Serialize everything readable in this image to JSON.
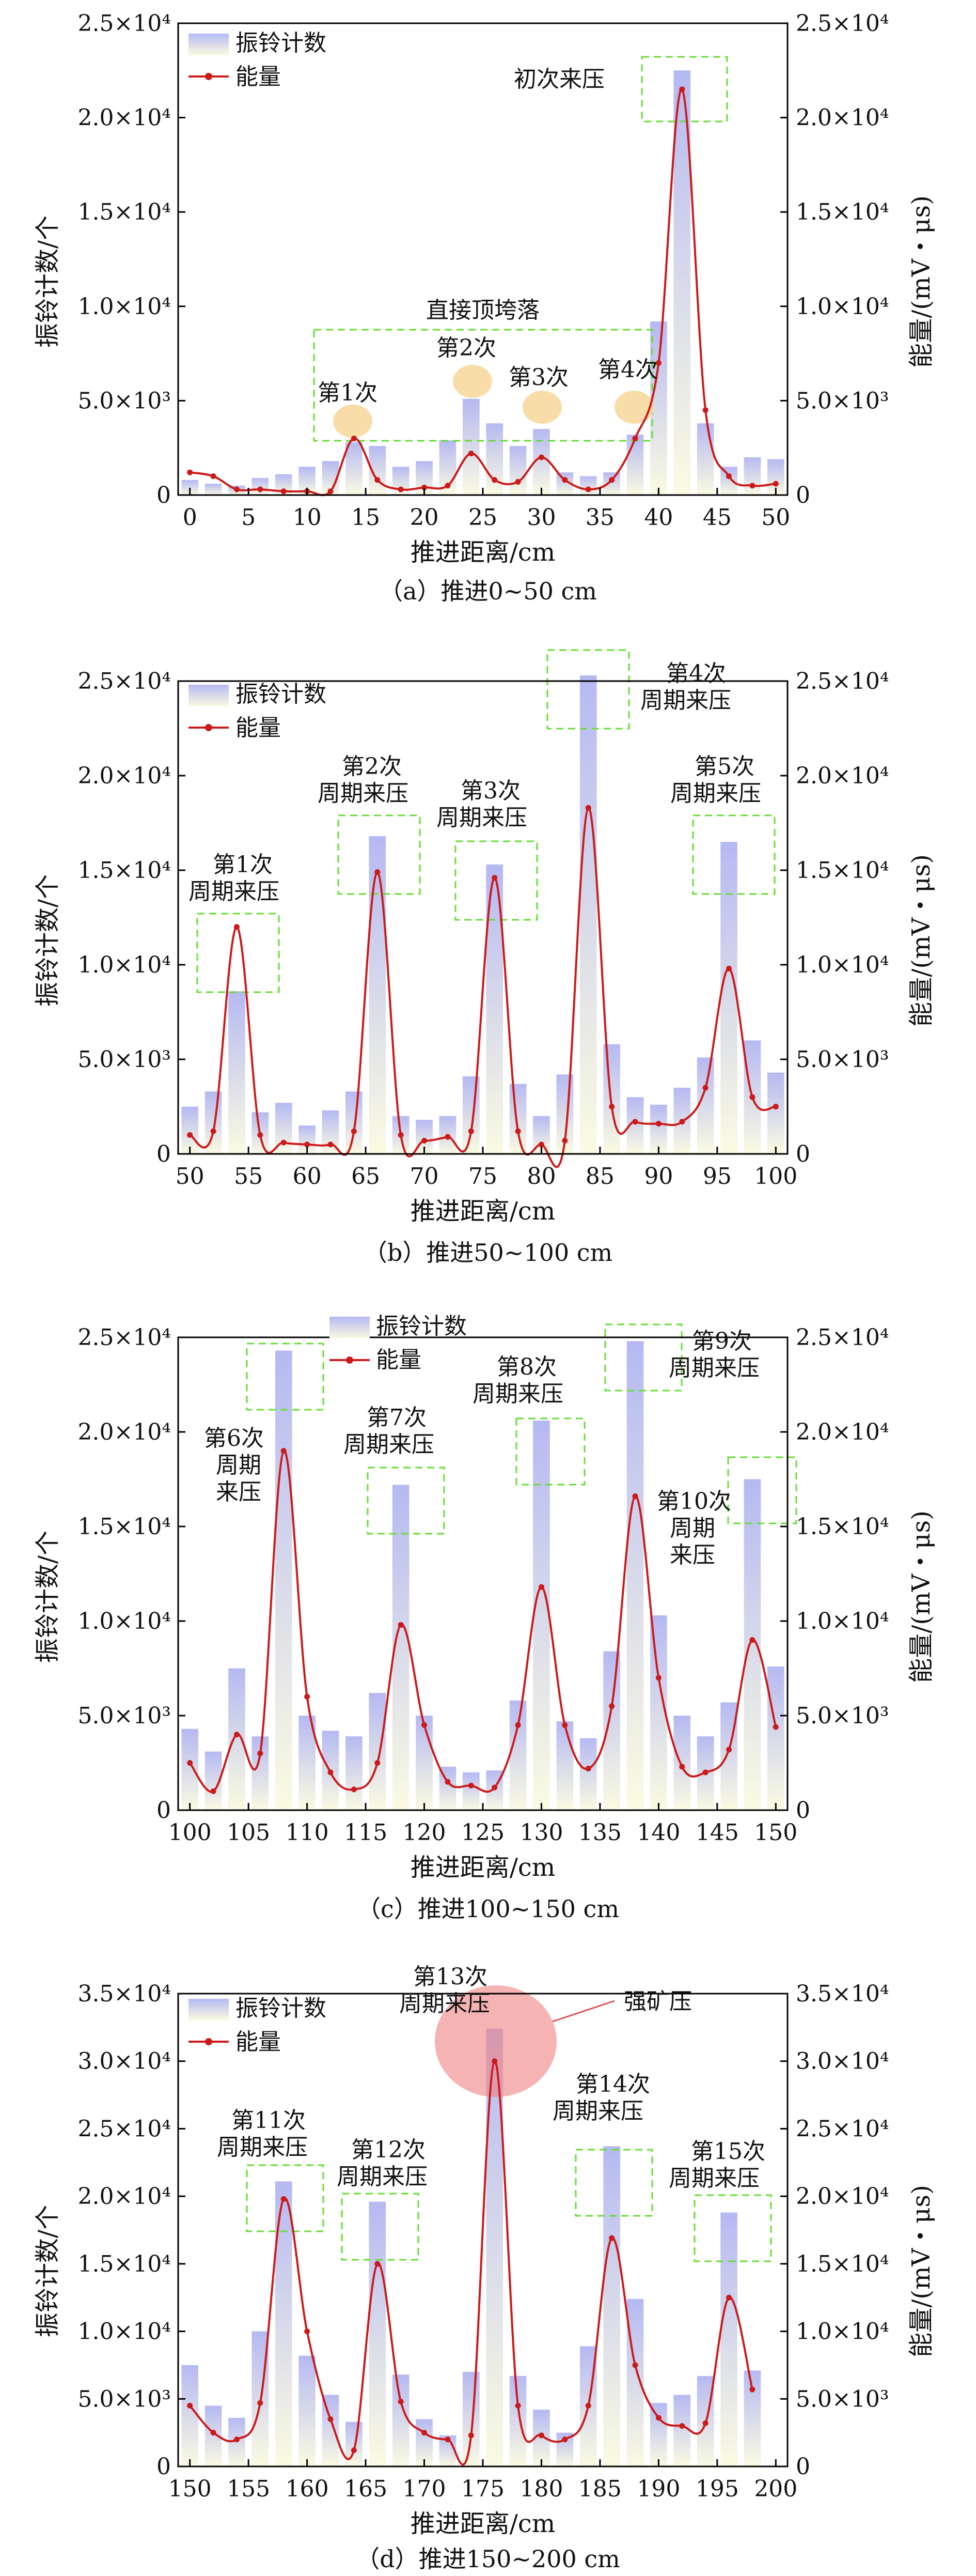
{
  "chart_data": [
    {
      "type": "bar+line",
      "caption": "（a）推进0~50 cm",
      "xlabel": "推进距离/cm",
      "ylabel_left": "振铃计数/个",
      "ylabel_right": "能量/(mV・μs)",
      "xlim": [
        -1,
        51
      ],
      "xticks": [
        0,
        5,
        10,
        15,
        20,
        25,
        30,
        35,
        40,
        45,
        50
      ],
      "ylim": [
        0,
        25000
      ],
      "yticks": [
        0,
        5000,
        10000,
        15000,
        20000,
        25000
      ],
      "ytick_labels": [
        "0",
        "5.0×10³",
        "1.0×10⁴",
        "1.5×10⁴",
        "2.0×10⁴",
        "2.5×10⁴"
      ],
      "legend": {
        "bar": "振铃计数",
        "line": "能量"
      },
      "bars": {
        "name": "振铃计数",
        "x": [
          0,
          2,
          4,
          6,
          8,
          10,
          12,
          14,
          16,
          18,
          20,
          22,
          24,
          26,
          28,
          30,
          32,
          34,
          36,
          38,
          40,
          42,
          44,
          46,
          48,
          50
        ],
        "values": [
          800,
          600,
          500,
          900,
          1100,
          1500,
          1800,
          2800,
          2600,
          1500,
          1800,
          2900,
          5100,
          3800,
          2600,
          3500,
          1200,
          1000,
          1200,
          3200,
          9200,
          22500,
          3800,
          1500,
          2000,
          1900
        ]
      },
      "line": {
        "name": "能量",
        "x": [
          0,
          2,
          4,
          6,
          8,
          10,
          12,
          14,
          16,
          18,
          20,
          22,
          24,
          26,
          28,
          30,
          32,
          34,
          36,
          38,
          40,
          42,
          44,
          46,
          48,
          50
        ],
        "values": [
          1200,
          1000,
          300,
          300,
          200,
          200,
          200,
          3000,
          800,
          300,
          400,
          500,
          2200,
          800,
          700,
          2000,
          800,
          300,
          800,
          3000,
          7000,
          21500,
          4500,
          1000,
          500,
          600
        ]
      },
      "annotations": [
        {
          "text": "初次来压",
          "x": 43,
          "y": 22000,
          "box": true
        },
        {
          "text": "直接顶垮落",
          "x": 27,
          "y": 8000
        },
        {
          "text": "第1次",
          "x": 14,
          "y": 4800,
          "marker": "ellipse"
        },
        {
          "text": "第2次",
          "x": 24.5,
          "y": 7200,
          "marker": "ellipse"
        },
        {
          "text": "第3次",
          "x": 30,
          "y": 4800,
          "marker": "ellipse"
        },
        {
          "text": "第4次",
          "x": 38,
          "y": 4800,
          "marker": "ellipse"
        }
      ]
    },
    {
      "type": "bar+line",
      "caption": "（b）推进50~100 cm",
      "xlabel": "推进距离/cm",
      "ylabel_left": "振铃计数/个",
      "ylabel_right": "能量/(mV・μs)",
      "xlim": [
        49,
        101
      ],
      "xticks": [
        50,
        55,
        60,
        65,
        70,
        75,
        80,
        85,
        90,
        95,
        100
      ],
      "ylim": [
        0,
        25000
      ],
      "yticks": [
        0,
        5000,
        10000,
        15000,
        20000,
        25000
      ],
      "ytick_labels": [
        "0",
        "5.0×10³",
        "1.0×10⁴",
        "1.5×10⁴",
        "2.0×10⁴",
        "2.5×10⁴"
      ],
      "legend": {
        "bar": "振铃计数",
        "line": "能量"
      },
      "bars": {
        "name": "振铃计数",
        "x": [
          50,
          52,
          54,
          56,
          58,
          60,
          62,
          64,
          66,
          68,
          70,
          72,
          74,
          76,
          78,
          80,
          82,
          84,
          86,
          88,
          90,
          92,
          94,
          96,
          98,
          100
        ],
        "values": [
          2500,
          3300,
          8600,
          2200,
          2700,
          1500,
          2300,
          3300,
          16800,
          2000,
          1800,
          2000,
          4100,
          15300,
          3700,
          2000,
          4200,
          25300,
          5800,
          3000,
          2600,
          3500,
          5100,
          16500,
          6000,
          4300
        ]
      },
      "line": {
        "name": "能量",
        "x": [
          50,
          52,
          54,
          56,
          58,
          60,
          62,
          64,
          66,
          68,
          70,
          72,
          74,
          76,
          78,
          80,
          82,
          84,
          86,
          88,
          90,
          92,
          94,
          96,
          98,
          100
        ],
        "values": [
          1000,
          1200,
          12000,
          1000,
          600,
          500,
          500,
          1200,
          14900,
          1000,
          700,
          900,
          1200,
          14600,
          1200,
          500,
          700,
          18300,
          2500,
          1700,
          1600,
          1700,
          3500,
          9800,
          3000,
          2500
        ]
      },
      "annotations": [
        {
          "text": "第1次周期来压",
          "x": 54,
          "y": 11000,
          "box": true
        },
        {
          "text": "第2次周期来压",
          "x": 65,
          "y": 16800,
          "box": true
        },
        {
          "text": "第3次周期来压",
          "x": 75,
          "y": 14800,
          "box": true
        },
        {
          "text": "第4次周期来压",
          "x": 84,
          "y": 24000,
          "box": true
        },
        {
          "text": "第5次周期来压",
          "x": 96,
          "y": 16800,
          "box": true
        }
      ]
    },
    {
      "type": "bar+line",
      "caption": "（c）推进100~150 cm",
      "xlabel": "推进距离/cm",
      "ylabel_left": "振铃计数/个",
      "ylabel_right": "能量/(mV・μs)",
      "xlim": [
        99,
        151
      ],
      "xticks": [
        100,
        105,
        110,
        115,
        120,
        125,
        130,
        135,
        140,
        145,
        150
      ],
      "ylim": [
        0,
        25000
      ],
      "yticks": [
        0,
        5000,
        10000,
        15000,
        20000,
        25000
      ],
      "ytick_labels": [
        "0",
        "5.0×10³",
        "1.0×10⁴",
        "1.5×10⁴",
        "2.0×10⁴",
        "2.5×10⁴"
      ],
      "legend": {
        "bar": "振铃计数",
        "line": "能量"
      },
      "bars": {
        "name": "振铃计数",
        "x": [
          100,
          102,
          104,
          106,
          108,
          110,
          112,
          114,
          116,
          118,
          120,
          122,
          124,
          126,
          128,
          130,
          132,
          134,
          136,
          138,
          140,
          142,
          144,
          146,
          148,
          150
        ],
        "values": [
          4300,
          3100,
          7500,
          3900,
          24300,
          5000,
          4200,
          3900,
          6200,
          17200,
          5000,
          2300,
          2000,
          2100,
          5800,
          20600,
          4700,
          3800,
          8400,
          24800,
          10300,
          5000,
          3900,
          5700,
          17500,
          7600
        ]
      },
      "line": {
        "name": "能量",
        "x": [
          100,
          102,
          104,
          106,
          108,
          110,
          112,
          114,
          116,
          118,
          120,
          122,
          124,
          126,
          128,
          130,
          132,
          134,
          136,
          138,
          140,
          142,
          144,
          146,
          148,
          150
        ],
        "values": [
          2500,
          1000,
          4000,
          3000,
          19000,
          6000,
          2000,
          1100,
          2500,
          9800,
          4500,
          1500,
          1300,
          1200,
          4500,
          11800,
          4500,
          2200,
          5500,
          16600,
          7000,
          2300,
          2000,
          3200,
          9000,
          4400
        ]
      },
      "annotations": [
        {
          "text": "第6次周期来压",
          "x": 105,
          "y": 17000
        },
        {
          "text": "第7次周期来压",
          "x": 118,
          "y": 16800,
          "box": true
        },
        {
          "text": "第8次周期来压",
          "x": 130,
          "y": 20800,
          "box": true
        },
        {
          "text": "第9次周期来压",
          "x": 138,
          "y": 24000,
          "box": true
        },
        {
          "text": "第10次周期来压",
          "x": 142,
          "y": 16000
        },
        {
          "text": "",
          "x": 148,
          "y": 17500,
          "box": true
        }
      ]
    },
    {
      "type": "bar+line",
      "caption": "（d）推进150~200 cm",
      "xlabel": "推进距离/cm",
      "ylabel_left": "振铃计数/个",
      "ylabel_right": "能量/(mV・μs)",
      "xlim": [
        149,
        201
      ],
      "xticks": [
        150,
        155,
        160,
        165,
        170,
        175,
        180,
        185,
        190,
        195,
        200
      ],
      "ylim": [
        0,
        35000
      ],
      "yticks": [
        0,
        5000,
        10000,
        15000,
        20000,
        25000,
        30000,
        35000
      ],
      "ytick_labels": [
        "0",
        "5.0×10³",
        "1.0×10⁴",
        "1.5×10⁴",
        "2.0×10⁴",
        "2.5×10⁴",
        "3.0×10⁴",
        "3.5×10⁴"
      ],
      "legend": {
        "bar": "振铃计数",
        "line": "能量"
      },
      "bars": {
        "name": "振铃计数",
        "x": [
          150,
          152,
          154,
          156,
          158,
          160,
          162,
          164,
          166,
          168,
          170,
          172,
          174,
          176,
          178,
          180,
          182,
          184,
          186,
          188,
          190,
          192,
          194,
          196,
          198
        ],
        "values": [
          7500,
          4500,
          3600,
          10000,
          21100,
          8200,
          5300,
          3300,
          19600,
          6800,
          3500,
          2300,
          7000,
          32400,
          6700,
          4200,
          2500,
          8900,
          23700,
          12400,
          4700,
          5300,
          6700,
          18800,
          7100
        ]
      },
      "line": {
        "name": "能量",
        "x": [
          150,
          152,
          154,
          156,
          158,
          160,
          162,
          164,
          166,
          168,
          170,
          172,
          174,
          176,
          178,
          180,
          182,
          184,
          186,
          188,
          190,
          192,
          194,
          196,
          198
        ],
        "values": [
          4500,
          2500,
          2000,
          4700,
          19800,
          10000,
          3500,
          1200,
          15000,
          4800,
          2500,
          2000,
          2300,
          30000,
          4500,
          2300,
          2000,
          4500,
          16900,
          7500,
          3600,
          3000,
          3200,
          12500,
          5700
        ]
      },
      "annotations": [
        {
          "text": "第11次周期来压",
          "x": 157,
          "y": 21000,
          "box": true
        },
        {
          "text": "第12次周期来压",
          "x": 166,
          "y": 17500,
          "box": true
        },
        {
          "text": "第13次周期来压",
          "x": 176,
          "y": 32000,
          "marker": "circle"
        },
        {
          "text": "强矿压",
          "x": 185,
          "y": 33000
        },
        {
          "text": "第14次周期来压",
          "x": 186,
          "y": 21000,
          "box": true
        },
        {
          "text": "第15次周期来压",
          "x": 196,
          "y": 17500,
          "box": true
        }
      ]
    }
  ]
}
